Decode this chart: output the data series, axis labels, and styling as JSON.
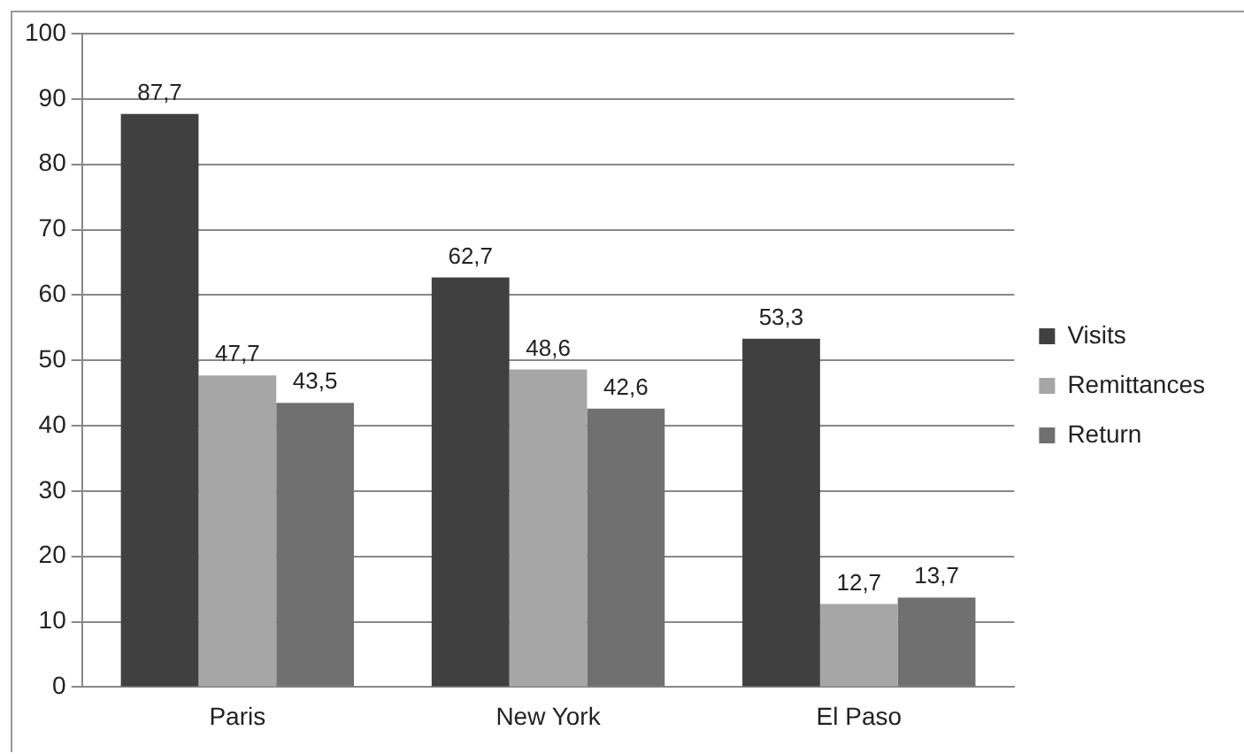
{
  "chart_data": {
    "type": "bar",
    "categories": [
      "Paris",
      "New York",
      "El Paso"
    ],
    "series": [
      {
        "name": "Visits",
        "color": "#404040",
        "values": [
          87.7,
          62.7,
          53.3
        ],
        "value_labels": [
          "87,7",
          "62,7",
          "53,3"
        ]
      },
      {
        "name": "Remittances",
        "color": "#a6a6a6",
        "values": [
          47.7,
          48.6,
          12.7
        ],
        "value_labels": [
          "47,7",
          "48,6",
          "12,7"
        ]
      },
      {
        "name": "Return",
        "color": "#707070",
        "values": [
          43.5,
          42.6,
          13.7
        ],
        "value_labels": [
          "43,5",
          "42,6",
          "13,7"
        ]
      }
    ],
    "ylim": [
      0,
      100
    ],
    "yticks": [
      0,
      10,
      20,
      30,
      40,
      50,
      60,
      70,
      80,
      90,
      100
    ],
    "grid": "y",
    "legend": "right"
  }
}
